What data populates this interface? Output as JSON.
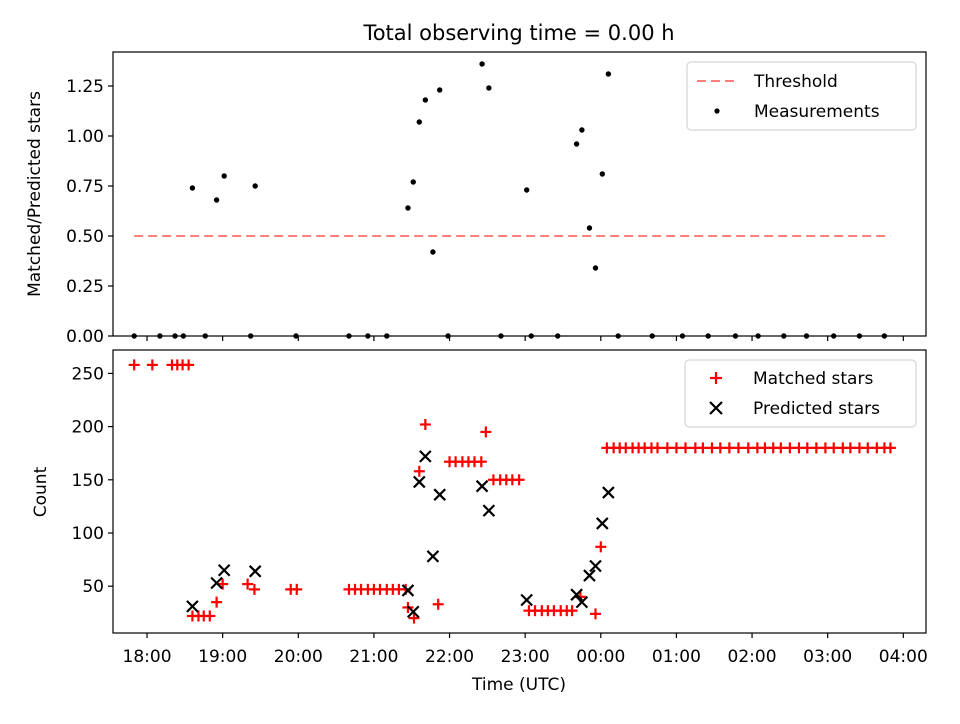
{
  "title": "Total observing time = 0.00 h",
  "colors": {
    "threshold": "#ff7f7f",
    "measurements": "#000000",
    "matched": "#ff0000",
    "predicted": "#000000"
  },
  "chart_data": [
    {
      "type": "scatter",
      "ylabel": "Matched/Predicted stars",
      "xlim": [
        17.55,
        28.3
      ],
      "ylim": [
        0,
        1.42
      ],
      "yticks": [
        0,
        0.25,
        0.5,
        0.75,
        1.0,
        1.25
      ],
      "ytick_labels": [
        "0.00",
        "0.25",
        "0.50",
        "0.75",
        "1.00",
        "1.25"
      ],
      "legend_position": "top-right",
      "threshold": {
        "name": "Threshold",
        "value": 0.5,
        "x_start": 17.83,
        "x_end": 27.83
      },
      "series": [
        {
          "name": "Measurements",
          "x": [
            17.83,
            18.17,
            18.37,
            18.48,
            18.77,
            19.37,
            19.97,
            20.67,
            20.92,
            21.17,
            21.98,
            22.68,
            23.08,
            23.43,
            24.23,
            24.68,
            25.08,
            25.42,
            25.78,
            26.08,
            26.42,
            26.72,
            27.08,
            27.42,
            27.75,
            18.6,
            18.92,
            19.02,
            19.43,
            21.45,
            21.52,
            21.6,
            21.68,
            21.78,
            21.87,
            22.43,
            22.52,
            23.02,
            23.68,
            23.75,
            23.85,
            23.93,
            24.02,
            24.1
          ],
          "y": [
            0,
            0,
            0,
            0,
            0,
            0,
            0,
            0,
            0,
            0,
            0,
            0,
            0,
            0,
            0,
            0,
            0,
            0,
            0,
            0,
            0,
            0,
            0,
            0,
            0,
            0.74,
            0.68,
            0.8,
            0.75,
            0.64,
            0.77,
            1.07,
            1.18,
            0.42,
            1.23,
            1.36,
            1.24,
            0.73,
            0.96,
            1.03,
            0.54,
            0.34,
            0.81,
            1.31
          ]
        }
      ]
    },
    {
      "type": "scatter",
      "ylabel": "Count",
      "xlabel": "Time (UTC)",
      "xlim": [
        17.55,
        28.3
      ],
      "ylim": [
        6,
        272
      ],
      "yticks": [
        50,
        100,
        150,
        200,
        250
      ],
      "xticks": [
        18,
        19,
        20,
        21,
        22,
        23,
        24,
        25,
        26,
        27,
        28
      ],
      "xtick_labels": [
        "18:00",
        "19:00",
        "20:00",
        "21:00",
        "22:00",
        "23:00",
        "00:00",
        "01:00",
        "02:00",
        "03:00",
        "04:00"
      ],
      "legend_position": "top-right",
      "series": [
        {
          "name": "Matched stars",
          "x": [
            17.83,
            18.07,
            18.33,
            18.4,
            18.47,
            18.55,
            18.6,
            18.68,
            18.75,
            18.83,
            18.92,
            19.0,
            19.33,
            19.42,
            19.9,
            19.98,
            20.67,
            20.75,
            20.83,
            20.92,
            21.0,
            21.08,
            21.17,
            21.25,
            21.33,
            21.42,
            21.45,
            21.53,
            21.6,
            21.68,
            21.85,
            22.0,
            22.08,
            22.17,
            22.25,
            22.33,
            22.42,
            22.48,
            22.58,
            22.67,
            22.75,
            22.83,
            22.92,
            23.05,
            23.13,
            23.22,
            23.3,
            23.38,
            23.47,
            23.55,
            23.62,
            23.73,
            23.93,
            24.0,
            24.08,
            24.17,
            24.25,
            24.33,
            24.42,
            24.5,
            24.58,
            24.67,
            24.75,
            24.88,
            25.0,
            25.12,
            25.25,
            25.35,
            25.47,
            25.58,
            25.7,
            25.82,
            25.95,
            26.07,
            26.17,
            26.28,
            26.38,
            26.5,
            26.62,
            26.73,
            26.85,
            26.97,
            27.08,
            27.2,
            27.3,
            27.42,
            27.53,
            27.65,
            27.75,
            27.83
          ],
          "y": [
            258,
            258,
            258,
            258,
            258,
            258,
            22,
            22,
            22,
            22,
            35,
            52,
            52,
            47,
            47,
            47,
            47,
            47,
            47,
            47,
            47,
            47,
            47,
            47,
            47,
            47,
            30,
            20,
            158,
            202,
            33,
            167,
            167,
            167,
            167,
            167,
            167,
            195,
            150,
            150,
            150,
            150,
            150,
            27,
            27,
            27,
            27,
            27,
            27,
            27,
            27,
            40,
            24,
            87,
            180,
            180,
            180,
            180,
            180,
            180,
            180,
            180,
            180,
            180,
            180,
            180,
            180,
            180,
            180,
            180,
            180,
            180,
            180,
            180,
            180,
            180,
            180,
            180,
            180,
            180,
            180,
            180,
            180,
            180,
            180,
            180,
            180,
            180,
            180,
            180
          ]
        },
        {
          "name": "Predicted stars",
          "x": [
            18.6,
            18.92,
            19.02,
            19.43,
            21.45,
            21.52,
            21.6,
            21.68,
            21.78,
            21.87,
            22.43,
            22.52,
            23.02,
            23.68,
            23.75,
            23.85,
            23.93,
            24.02,
            24.1
          ],
          "y": [
            31,
            53,
            65,
            64,
            46,
            26,
            148,
            172,
            78,
            136,
            144,
            121,
            37,
            42,
            35,
            60,
            69,
            109,
            138
          ]
        }
      ]
    }
  ]
}
